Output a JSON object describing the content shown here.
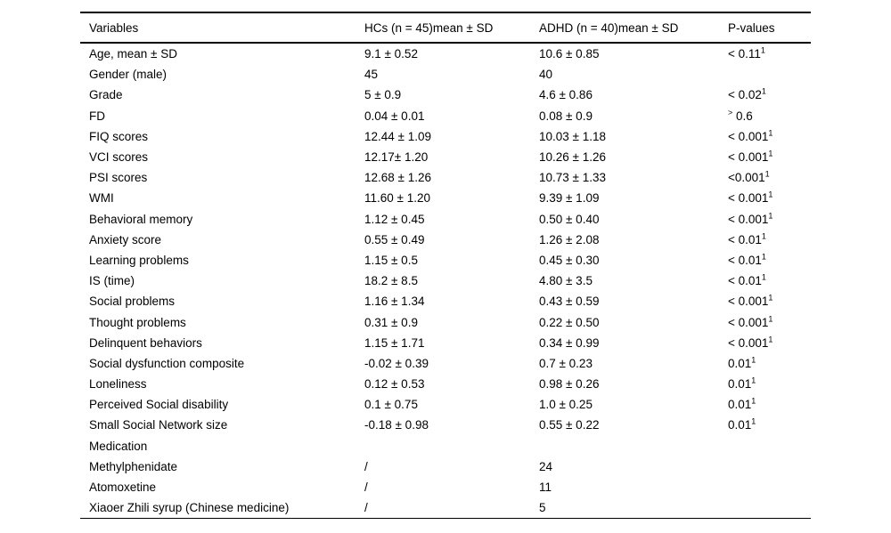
{
  "colors": {
    "background": "#ffffff",
    "text": "#000000",
    "rule": "#000000"
  },
  "table": {
    "columns": [
      {
        "label": "Variables"
      },
      {
        "label": "HCs (n = 45)mean ± SD"
      },
      {
        "label": "ADHD (n = 40)mean ± SD"
      },
      {
        "label": "P-values"
      }
    ],
    "rows": [
      {
        "variable": "Age, mean ± SD",
        "hcs": "9.1 ± 0.52",
        "adhd": "10.6 ± 0.85",
        "p": "< 0.11",
        "p_sup": "1",
        "p_presup": ""
      },
      {
        "variable": "Gender (male)",
        "hcs": "45",
        "adhd": "40",
        "p": "",
        "p_sup": "",
        "p_presup": ""
      },
      {
        "variable": "Grade",
        "hcs": "5 ± 0.9",
        "adhd": "4.6 ± 0.86",
        "p": "< 0.02",
        "p_sup": "1",
        "p_presup": ""
      },
      {
        "variable": "FD",
        "hcs": "0.04 ± 0.01",
        "adhd": "0.08 ± 0.9",
        "p": "0.6",
        "p_sup": "",
        "p_presup": ">"
      },
      {
        "variable": "FIQ scores",
        "hcs": "12.44 ± 1.09",
        "adhd": "10.03 ± 1.18",
        "p": "< 0.001",
        "p_sup": "1",
        "p_presup": ""
      },
      {
        "variable": "VCI scores",
        "hcs": "12.17± 1.20",
        "adhd": "10.26 ± 1.26",
        "p": "< 0.001",
        "p_sup": "1",
        "p_presup": ""
      },
      {
        "variable": "PSI scores",
        "hcs": "12.68 ± 1.26",
        "adhd": "10.73 ± 1.33",
        "p": "<0.001",
        "p_sup": "1",
        "p_presup": ""
      },
      {
        "variable": "WMI",
        "hcs": "11.60 ± 1.20",
        "adhd": "9.39 ± 1.09",
        "p": "< 0.001",
        "p_sup": "1",
        "p_presup": ""
      },
      {
        "variable": "Behavioral memory",
        "hcs": "1.12 ± 0.45",
        "adhd": "0.50 ± 0.40",
        "p": "< 0.001",
        "p_sup": "1",
        "p_presup": ""
      },
      {
        "variable": "Anxiety score",
        "hcs": "0.55 ± 0.49",
        "adhd": "1.26 ± 2.08",
        "p": "< 0.01",
        "p_sup": "1",
        "p_presup": ""
      },
      {
        "variable": "Learning problems",
        "hcs": "1.15 ± 0.5",
        "adhd": "0.45 ± 0.30",
        "p": "< 0.01",
        "p_sup": "1",
        "p_presup": ""
      },
      {
        "variable": "IS (time)",
        "hcs": "18.2 ± 8.5",
        "adhd": "4.80 ± 3.5",
        "p": "< 0.01",
        "p_sup": "1",
        "p_presup": ""
      },
      {
        "variable": "Social problems",
        "hcs": "1.16 ± 1.34",
        "adhd": "0.43 ± 0.59",
        "p": "< 0.001",
        "p_sup": "1",
        "p_presup": ""
      },
      {
        "variable": "Thought problems",
        "hcs": "0.31 ± 0.9",
        "adhd": "0.22 ± 0.50",
        "p": "< 0.001",
        "p_sup": "1",
        "p_presup": ""
      },
      {
        "variable": "Delinquent behaviors",
        "hcs": "1.15 ± 1.71",
        "adhd": "0.34 ± 0.99",
        "p": "< 0.001",
        "p_sup": "1",
        "p_presup": ""
      },
      {
        "variable": "Social dysfunction composite",
        "hcs": "-0.02 ± 0.39",
        "adhd": "0.7 ± 0.23",
        "p": "0.01",
        "p_sup": "1",
        "p_presup": ""
      },
      {
        "variable": "Loneliness",
        "hcs": "0.12 ± 0.53",
        "adhd": "0.98 ± 0.26",
        "p": "0.01",
        "p_sup": "1",
        "p_presup": ""
      },
      {
        "variable": "Perceived Social disability",
        "hcs": "0.1 ± 0.75",
        "adhd": "1.0 ± 0.25",
        "p": "0.01",
        "p_sup": "1",
        "p_presup": ""
      },
      {
        "variable": "Small Social Network size",
        "hcs": "-0.18 ± 0.98",
        "adhd": "0.55 ± 0.22",
        "p": "0.01",
        "p_sup": "1",
        "p_presup": ""
      },
      {
        "variable": "Medication",
        "hcs": "",
        "adhd": "",
        "p": "",
        "p_sup": "",
        "p_presup": ""
      },
      {
        "variable": "Methylphenidate",
        "hcs": "/",
        "adhd": "24",
        "p": "",
        "p_sup": "",
        "p_presup": ""
      },
      {
        "variable": "Atomoxetine",
        "hcs": "/",
        "adhd": "11",
        "p": "",
        "p_sup": "",
        "p_presup": ""
      },
      {
        "variable": "Xiaoer Zhili syrup (Chinese medicine)",
        "hcs": "/",
        "adhd": "5",
        "p": "",
        "p_sup": "",
        "p_presup": ""
      }
    ]
  }
}
